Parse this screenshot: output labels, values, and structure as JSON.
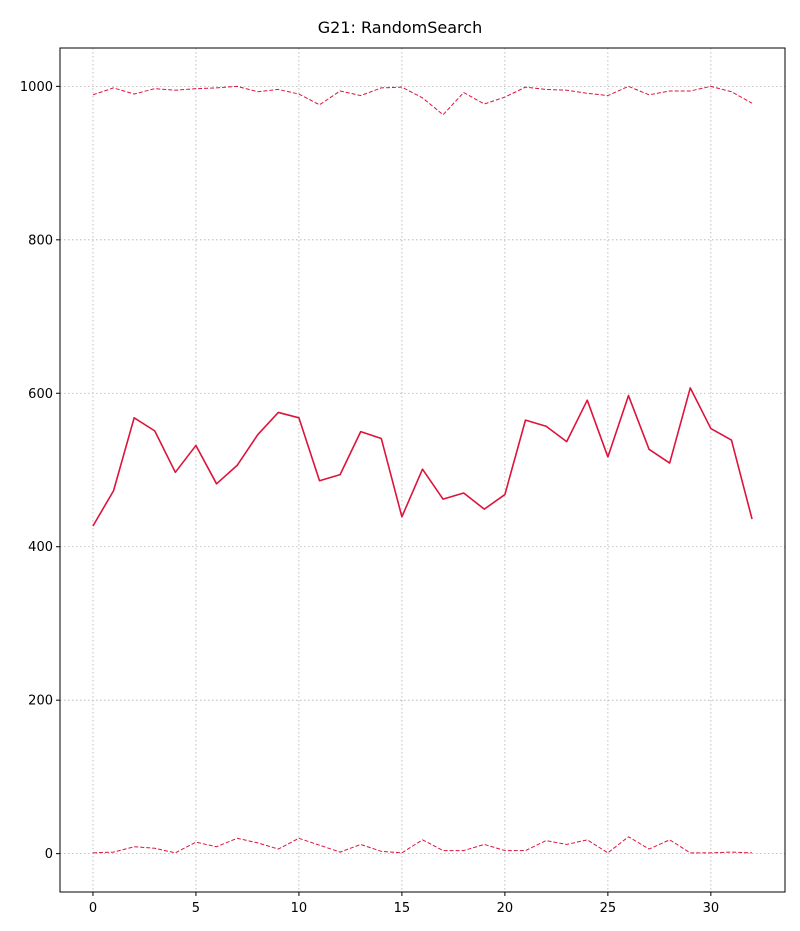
{
  "chart_data": {
    "type": "line",
    "title": "G21: RandomSearch",
    "xlabel": "",
    "ylabel": "",
    "xlim": [
      -1.6,
      33.6
    ],
    "ylim": [
      -50,
      1050
    ],
    "xticks": [
      0,
      5,
      10,
      15,
      20,
      25,
      30
    ],
    "yticks": [
      0,
      200,
      400,
      600,
      800,
      1000
    ],
    "grid": true,
    "color": "#dc143c",
    "x": [
      0,
      1,
      2,
      3,
      4,
      5,
      6,
      7,
      8,
      9,
      10,
      11,
      12,
      13,
      14,
      15,
      16,
      17,
      18,
      19,
      20,
      21,
      22,
      23,
      24,
      25,
      26,
      27,
      28,
      29,
      30,
      31,
      32
    ],
    "series": [
      {
        "style": "solid",
        "values": [
          427,
          473,
          568,
          551,
          497,
          532,
          482,
          506,
          546,
          575,
          568,
          486,
          494,
          550,
          541,
          439,
          501,
          462,
          470,
          449,
          468,
          565,
          557,
          537,
          591,
          517,
          597,
          527,
          509,
          607,
          554,
          539,
          436
        ]
      },
      {
        "style": "dashed",
        "values": [
          989,
          998,
          990,
          997,
          995,
          997,
          998,
          1000,
          993,
          996,
          990,
          976,
          994,
          988,
          998,
          999,
          985,
          963,
          992,
          977,
          986,
          999,
          996,
          995,
          991,
          988,
          1000,
          989,
          994,
          994,
          1000,
          993,
          978
        ]
      },
      {
        "style": "dashed",
        "values": [
          1,
          2,
          9,
          7,
          1,
          15,
          9,
          20,
          14,
          6,
          20,
          11,
          2,
          12,
          3,
          1,
          18,
          4,
          4,
          12,
          4,
          4,
          17,
          12,
          18,
          1,
          22,
          6,
          18,
          1,
          1,
          2,
          1
        ]
      }
    ]
  }
}
